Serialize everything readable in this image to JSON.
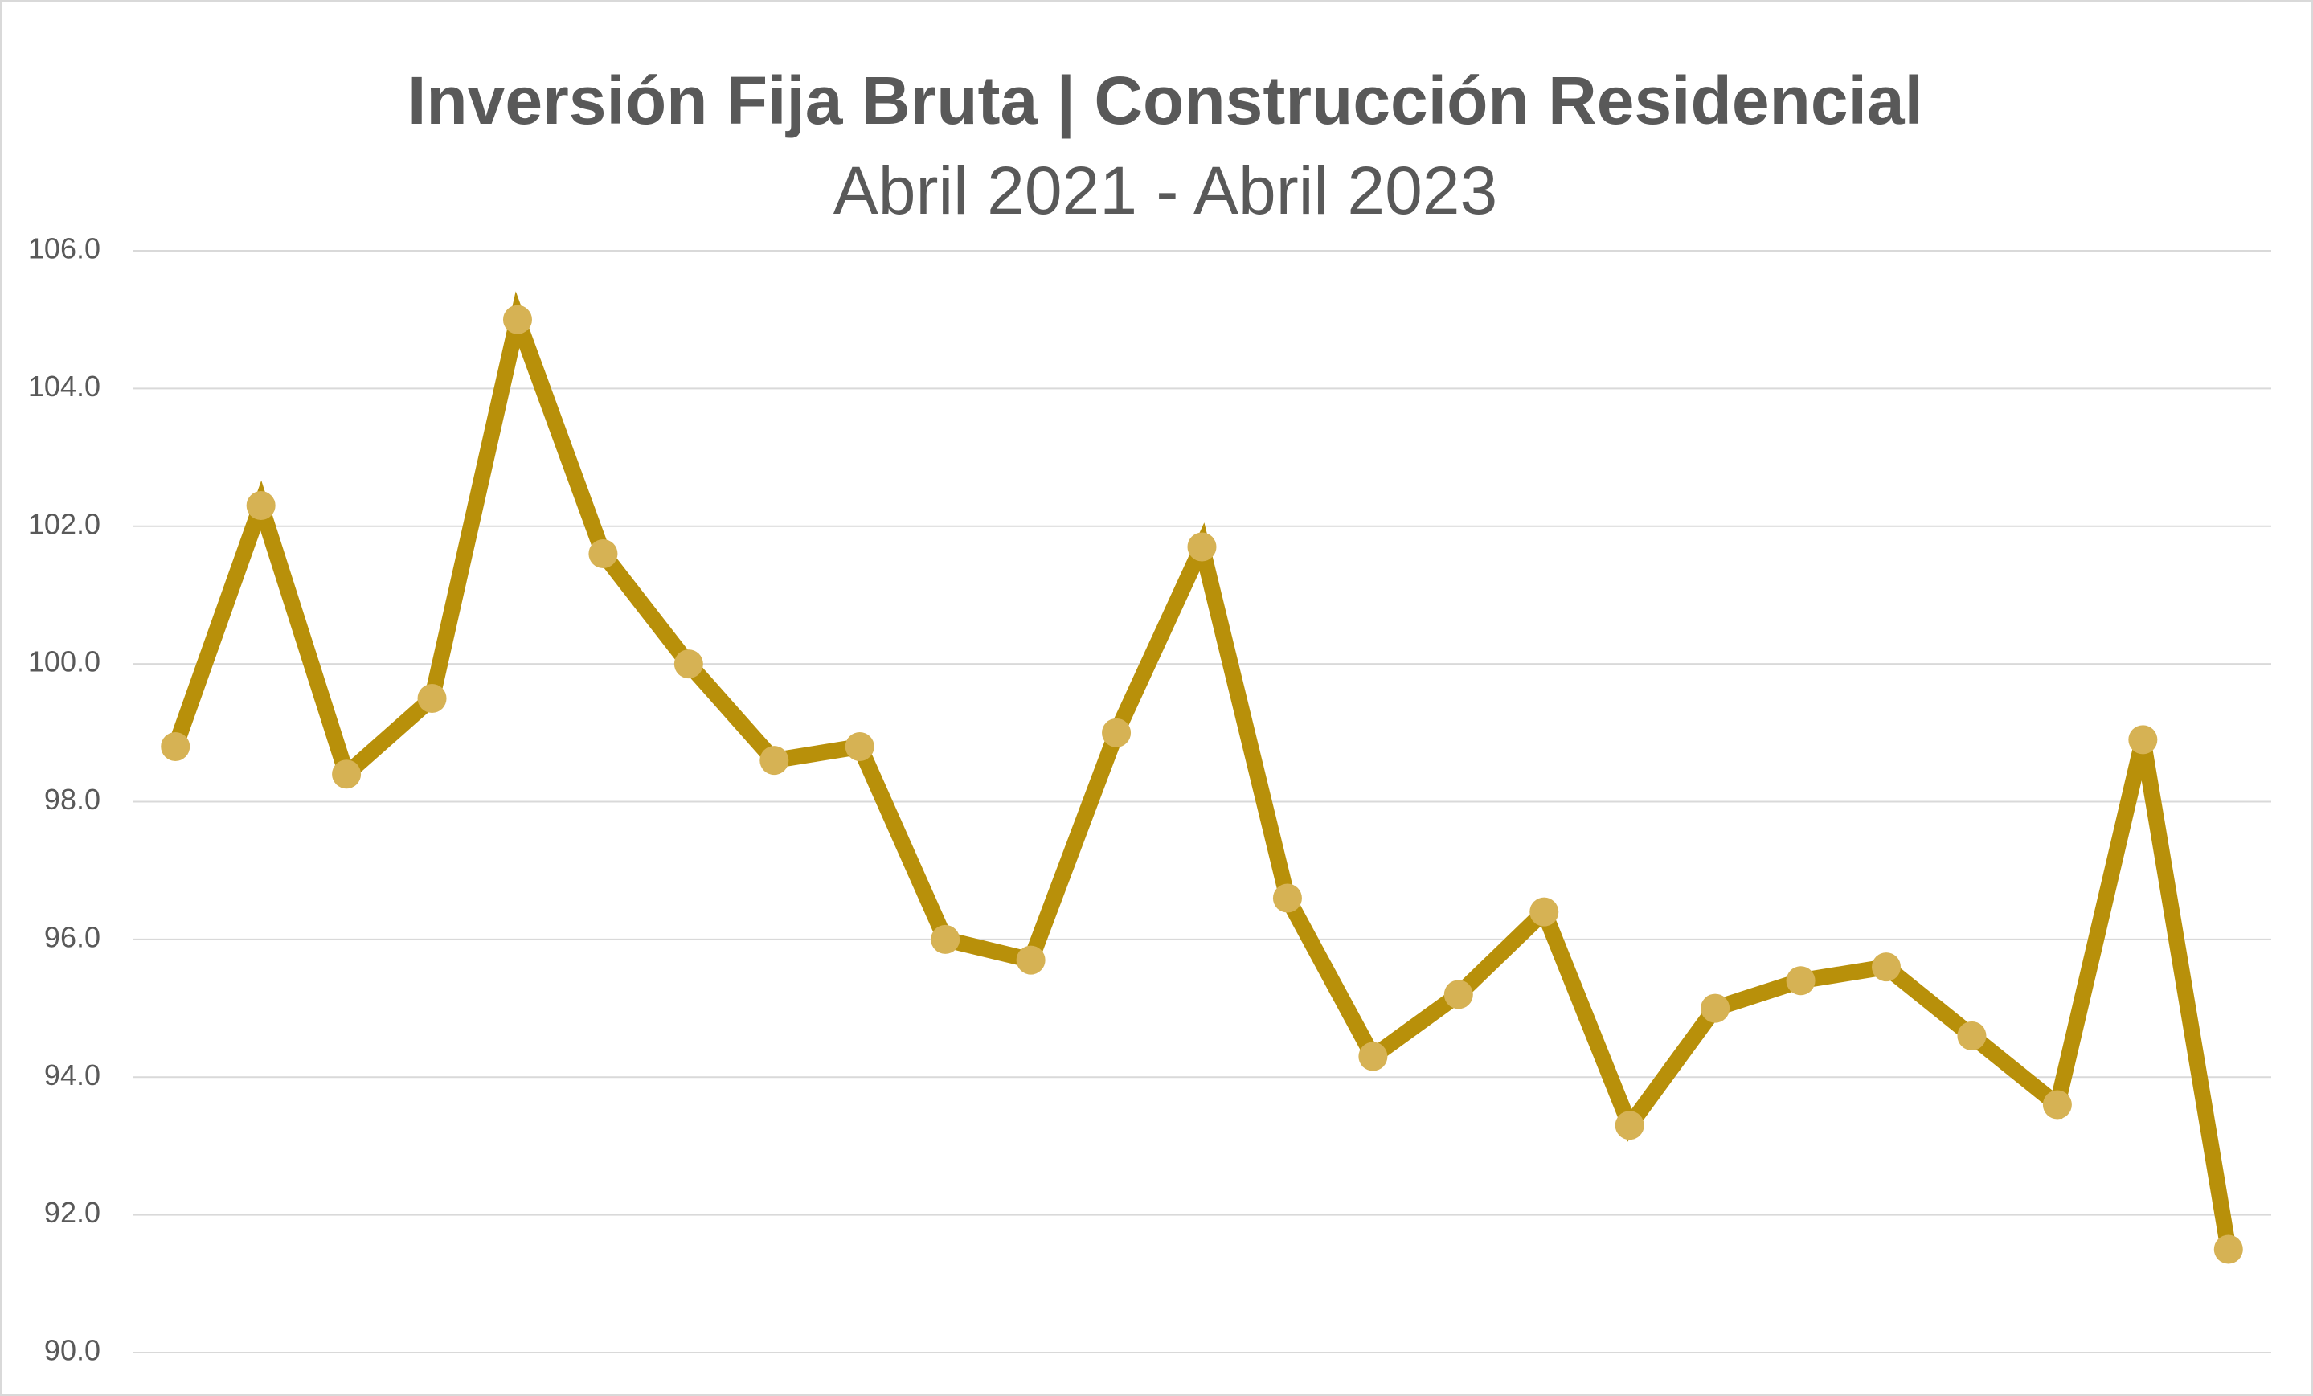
{
  "chart_data": {
    "type": "line",
    "title": "Inversión Fija Bruta | Construcción Residencial",
    "subtitle": "Abril 2021 - Abril 2023",
    "values": [
      98.8,
      102.3,
      98.4,
      99.5,
      105.0,
      101.6,
      100.0,
      98.6,
      98.8,
      96.0,
      95.7,
      99.0,
      101.7,
      96.6,
      94.3,
      95.2,
      96.4,
      93.3,
      95.0,
      95.4,
      95.6,
      94.6,
      93.6,
      98.9,
      91.5
    ],
    "color": "#b8900a",
    "marker_color": "#d6b254",
    "ylim": [
      90,
      106
    ],
    "yticks": [
      {
        "value": 90,
        "label": "90.0"
      },
      {
        "value": 92,
        "label": "92.0"
      },
      {
        "value": 94,
        "label": "94.0"
      },
      {
        "value": 96,
        "label": "96.0"
      },
      {
        "value": 98,
        "label": "98.0"
      },
      {
        "value": 100,
        "label": "100.0"
      },
      {
        "value": 102,
        "label": "102.0"
      },
      {
        "value": 104,
        "label": "104.0"
      },
      {
        "value": 106,
        "label": "106.0"
      }
    ],
    "grid": true
  }
}
